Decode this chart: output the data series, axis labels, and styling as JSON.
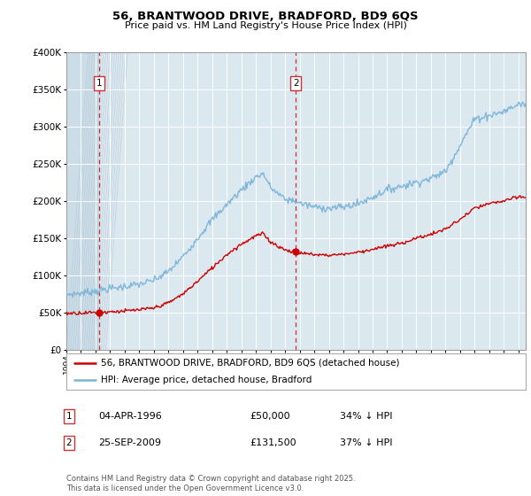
{
  "title": "56, BRANTWOOD DRIVE, BRADFORD, BD9 6QS",
  "subtitle": "Price paid vs. HM Land Registry's House Price Index (HPI)",
  "ylim": [
    0,
    400000
  ],
  "yticks": [
    0,
    50000,
    100000,
    150000,
    200000,
    250000,
    300000,
    350000,
    400000
  ],
  "sale1_date": 1996.26,
  "sale1_price": 50000,
  "sale2_date": 2009.73,
  "sale2_price": 131500,
  "hpi_color": "#7ab4d8",
  "sale_color": "#cc0000",
  "dashed_line_color": "#cc0000",
  "legend_label_red": "56, BRANTWOOD DRIVE, BRADFORD, BD9 6QS (detached house)",
  "legend_label_blue": "HPI: Average price, detached house, Bradford",
  "table_row1": [
    "1",
    "04-APR-1996",
    "£50,000",
    "34% ↓ HPI"
  ],
  "table_row2": [
    "2",
    "25-SEP-2009",
    "£131,500",
    "37% ↓ HPI"
  ],
  "footer": "Contains HM Land Registry data © Crown copyright and database right 2025.\nThis data is licensed under the Open Government Licence v3.0.",
  "plot_bg_color": "#dce8f0",
  "hatch_region_color": "#c0d4e0",
  "grid_color": "#b0c4d0"
}
